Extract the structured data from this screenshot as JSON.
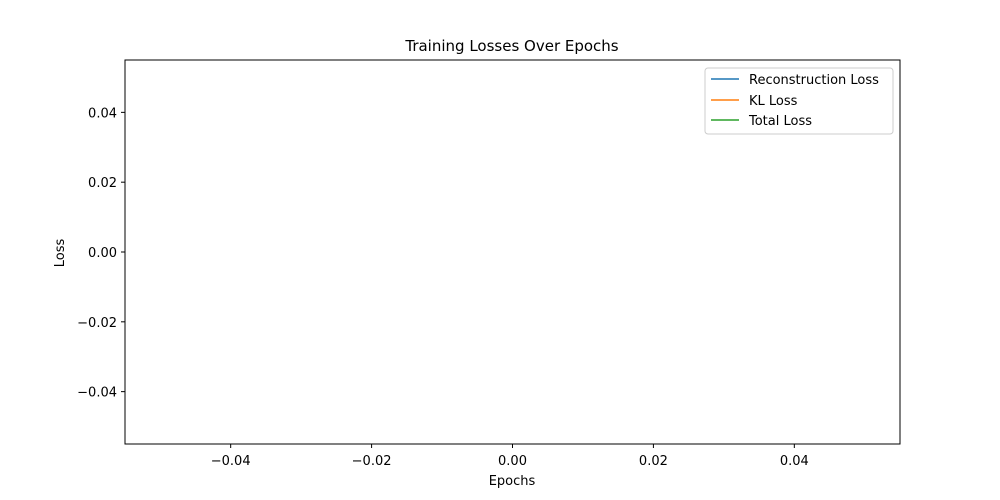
{
  "chart_data": {
    "type": "line",
    "title": "Training Losses Over Epochs",
    "xlabel": "Epochs",
    "ylabel": "Loss",
    "xlim": [
      -0.055,
      0.055
    ],
    "ylim": [
      -0.055,
      0.055
    ],
    "xticks": [
      -0.04,
      -0.02,
      0.0,
      0.02,
      0.04
    ],
    "yticks": [
      -0.04,
      -0.02,
      0.0,
      0.02,
      0.04
    ],
    "xtick_labels": [
      "−0.04",
      "−0.02",
      "0.00",
      "0.02",
      "0.04"
    ],
    "ytick_labels": [
      "−0.04",
      "−0.02",
      "0.00",
      "0.02",
      "0.04"
    ],
    "grid": false,
    "legend_position": "top-right",
    "series": [
      {
        "name": "Reconstruction Loss",
        "color": "#1f77b4",
        "x": [],
        "y": []
      },
      {
        "name": "KL Loss",
        "color": "#ff7f0e",
        "x": [],
        "y": []
      },
      {
        "name": "Total Loss",
        "color": "#2ca02c",
        "x": [],
        "y": []
      }
    ]
  }
}
